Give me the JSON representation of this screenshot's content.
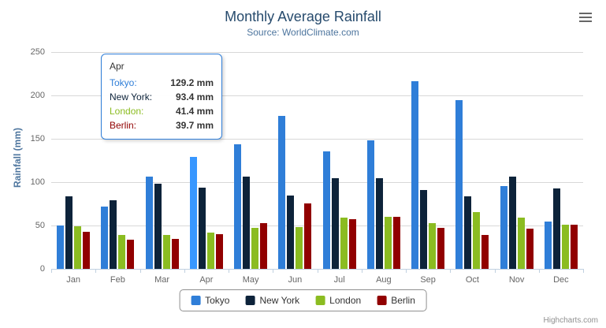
{
  "credits": "Highcharts.com",
  "chart_data": {
    "type": "bar",
    "title": "Monthly Average Rainfall",
    "subtitle": "Source: WorldClimate.com",
    "xlabel": "",
    "ylabel": "Rainfall (mm)",
    "ylim": [
      0,
      250
    ],
    "y_ticks": [
      0,
      50,
      100,
      150,
      200,
      250
    ],
    "grid": true,
    "legend_position": "bottom",
    "categories": [
      "Jan",
      "Feb",
      "Mar",
      "Apr",
      "May",
      "Jun",
      "Jul",
      "Aug",
      "Sep",
      "Oct",
      "Nov",
      "Dec"
    ],
    "series": [
      {
        "name": "Tokyo",
        "color": "#2f7ed8",
        "values": [
          49.9,
          71.5,
          106.4,
          129.2,
          144.0,
          176.0,
          135.6,
          148.5,
          216.4,
          194.1,
          95.6,
          54.4
        ]
      },
      {
        "name": "New York",
        "color": "#0d233a",
        "values": [
          83.6,
          78.8,
          98.5,
          93.4,
          106.0,
          84.5,
          105.0,
          104.3,
          91.2,
          83.5,
          106.6,
          92.3
        ]
      },
      {
        "name": "London",
        "color": "#8bbc21",
        "values": [
          48.9,
          38.8,
          39.3,
          41.4,
          47.0,
          48.3,
          59.0,
          59.6,
          52.4,
          65.2,
          59.3,
          51.2
        ]
      },
      {
        "name": "Berlin",
        "color": "#910000",
        "values": [
          42.4,
          33.2,
          34.5,
          39.7,
          52.6,
          75.5,
          57.4,
          60.4,
          47.6,
          39.1,
          46.8,
          51.1
        ]
      }
    ]
  },
  "tooltip": {
    "category": "Apr",
    "highlight": {
      "series": "Tokyo",
      "category": "Apr"
    },
    "rows": [
      {
        "name": "Tokyo",
        "value": "129.2 mm"
      },
      {
        "name": "New York",
        "value": "93.4 mm"
      },
      {
        "name": "London",
        "value": "41.4 mm"
      },
      {
        "name": "Berlin",
        "value": "39.7 mm"
      }
    ]
  }
}
